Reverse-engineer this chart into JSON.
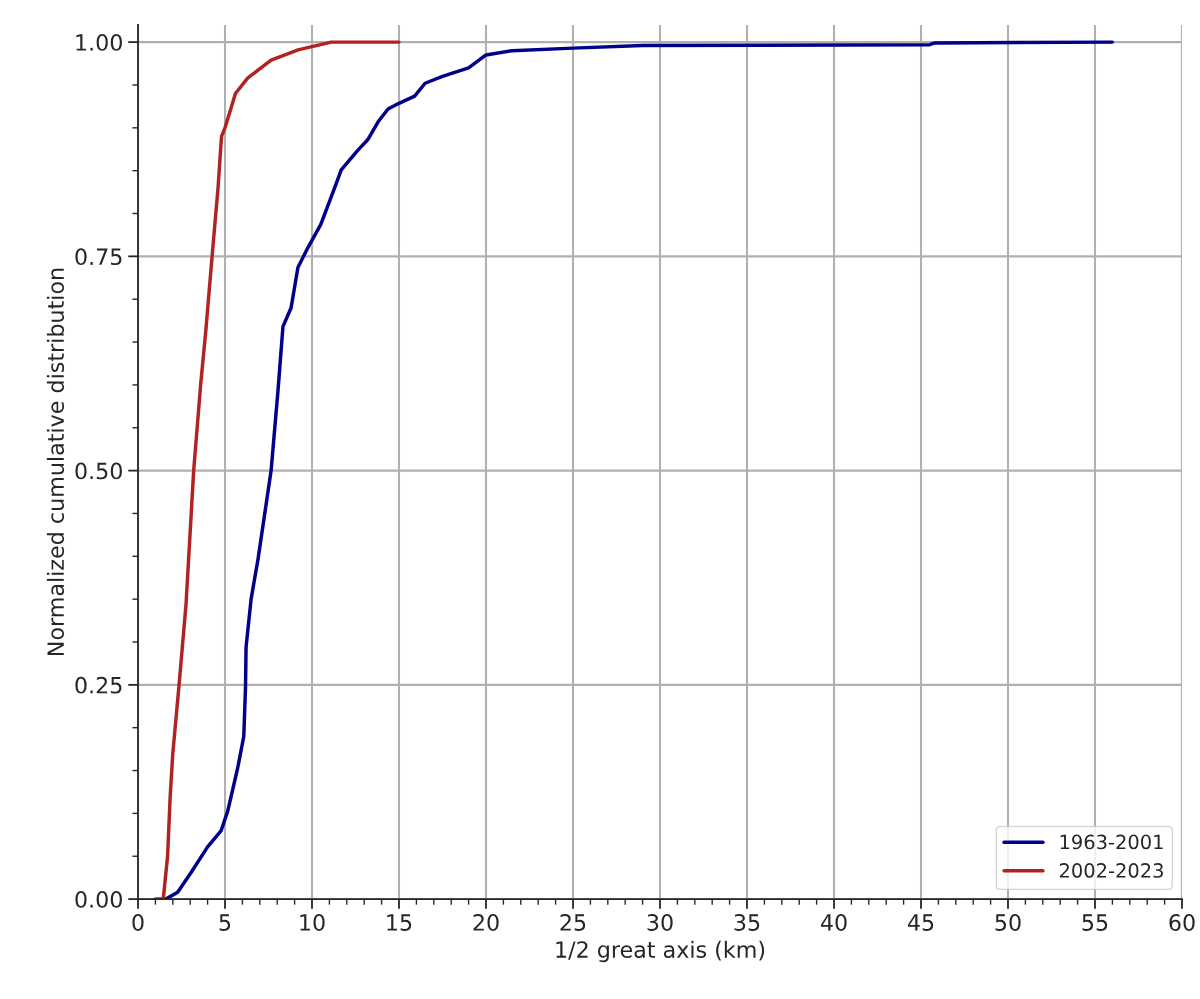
{
  "chart_data": {
    "type": "line",
    "xlabel": "1/2 great axis (km)",
    "ylabel": "Normalized cumulative distribution",
    "xlim": [
      0,
      60
    ],
    "xticks": [
      0,
      5,
      10,
      15,
      20,
      25,
      30,
      35,
      40,
      45,
      50,
      55,
      60
    ],
    "ylim": [
      0,
      1.02
    ],
    "yticks": [
      {
        "value": 0,
        "label": "0.00"
      },
      {
        "value": 0.25,
        "label": "0.25"
      },
      {
        "value": 0.5,
        "label": "0.50"
      },
      {
        "value": 0.75,
        "label": "0.75"
      },
      {
        "value": 1.0,
        "label": "1.00"
      }
    ],
    "grid": true,
    "legend": "bottom right",
    "marker": "none",
    "line_style": "solid",
    "series": [
      {
        "name": "1963-2001",
        "color": "#00008b",
        "x": [
          1.6,
          2.28,
          3.05,
          4.0,
          4.78,
          5.16,
          5.73,
          6.08,
          6.18,
          6.21,
          6.5,
          6.9,
          7.65,
          8.04,
          8.33,
          8.8,
          9.19,
          9.76,
          10.5,
          11.3,
          11.68,
          12.64,
          13.2,
          13.8,
          14.37,
          14.94,
          15.9,
          16.5,
          17.5,
          19.0,
          20.0,
          21.5,
          25.0,
          29.0,
          45.5,
          45.8,
          56.0
        ],
        "values": [
          0.0,
          0.008,
          0.031,
          0.061,
          0.08,
          0.103,
          0.153,
          0.19,
          0.248,
          0.294,
          0.35,
          0.397,
          0.5,
          0.592,
          0.668,
          0.69,
          0.737,
          0.76,
          0.787,
          0.83,
          0.851,
          0.874,
          0.886,
          0.907,
          0.922,
          0.928,
          0.937,
          0.952,
          0.96,
          0.97,
          0.985,
          0.99,
          0.993,
          0.996,
          0.997,
          0.999,
          1.0
        ]
      },
      {
        "name": "2002-2023",
        "color": "#b22222",
        "x": [
          1.0,
          1.45,
          1.55,
          1.7,
          1.85,
          2.0,
          2.36,
          2.76,
          3.2,
          3.6,
          3.9,
          4.3,
          4.6,
          4.8,
          5.0,
          5.3,
          5.6,
          6.3,
          7.65,
          9.2,
          11.1,
          15.0
        ],
        "values": [
          0.0,
          0.0,
          0.02,
          0.05,
          0.12,
          0.17,
          0.25,
          0.344,
          0.5,
          0.6,
          0.664,
          0.76,
          0.83,
          0.89,
          0.9,
          0.92,
          0.94,
          0.958,
          0.979,
          0.991,
          1.0,
          1.0
        ]
      }
    ]
  }
}
